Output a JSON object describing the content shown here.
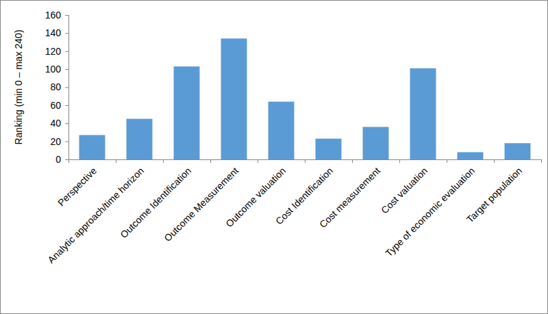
{
  "chart_data": {
    "type": "bar",
    "y_label": "Ranking (min 0 – max 240)",
    "categories": [
      "Perspective",
      "Analytic approach/time horizon",
      "Outcome Identification",
      "Outcome Measurement",
      "Outcome valuation",
      "Cost Identification",
      "Cost measurement",
      "Cost valuation",
      "Type of economic evaluation",
      "Target population"
    ],
    "values": [
      27,
      45,
      103,
      134,
      64,
      23,
      36,
      101,
      8,
      18
    ],
    "color": "#5b9bd5",
    "ylim": [
      0,
      160
    ],
    "yticks": [
      0,
      20,
      40,
      60,
      80,
      100,
      120,
      140,
      160
    ],
    "grid": false
  }
}
